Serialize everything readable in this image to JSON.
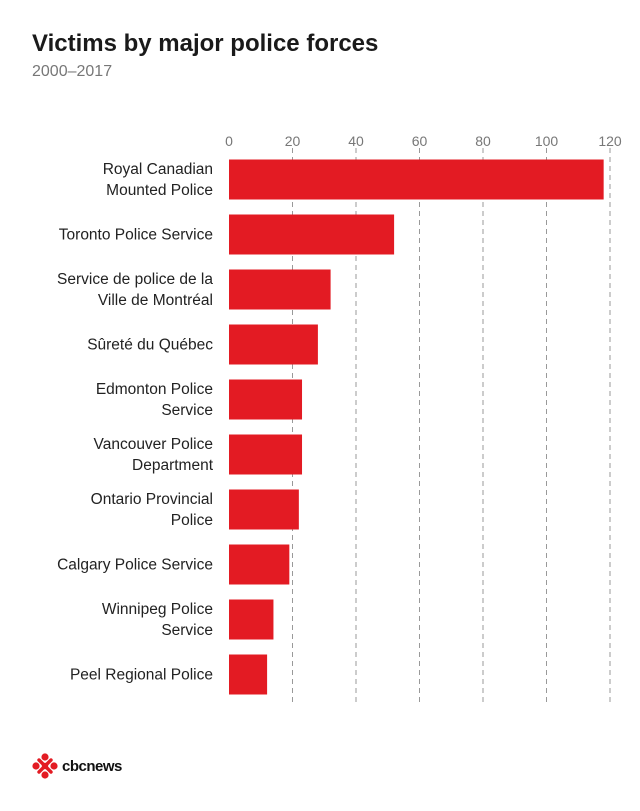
{
  "title": "Victims by major police forces",
  "subtitle": "2000–2017",
  "logo_text": "cbcnews",
  "colors": {
    "bar": "#e31b23",
    "grid": "#999999",
    "text": "#222222",
    "tick": "#777777"
  },
  "chart_data": {
    "type": "bar",
    "orientation": "horizontal",
    "title": "Victims by major police forces",
    "subtitle": "2000–2017",
    "categories": [
      [
        "Royal Canadian",
        "Mounted Police"
      ],
      [
        "Toronto Police Service"
      ],
      [
        "Service de police de la",
        "Ville de Montréal"
      ],
      [
        "Sûreté du Québec"
      ],
      [
        "Edmonton Police",
        "Service"
      ],
      [
        "Vancouver Police",
        "Department"
      ],
      [
        "Ontario Provincial",
        "Police"
      ],
      [
        "Calgary Police Service"
      ],
      [
        "Winnipeg Police",
        "Service"
      ],
      [
        "Peel Regional Police"
      ]
    ],
    "values": [
      118,
      52,
      32,
      28,
      23,
      23,
      22,
      19,
      14,
      12
    ],
    "xlim": [
      0,
      120
    ],
    "xticks": [
      0,
      20,
      40,
      60,
      80,
      100,
      120
    ],
    "grid": true,
    "axis_position": "top"
  }
}
